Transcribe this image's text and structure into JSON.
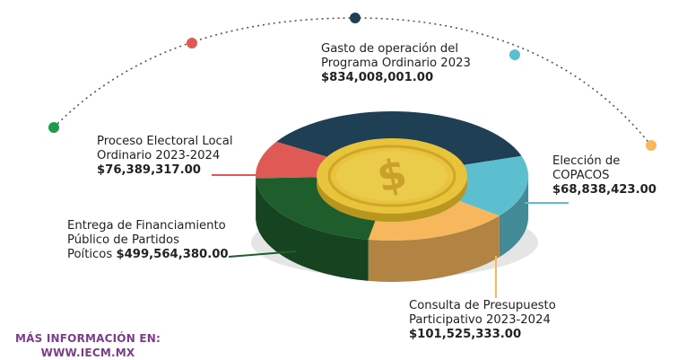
{
  "chart_data": {
    "type": "pie",
    "slices": [
      {
        "label": "Gasto de operación del\nPrograma Ordinario 2023",
        "value_text": "$834,008,001.00",
        "value": 834008001.0,
        "color": "#1f3f55"
      },
      {
        "label": "Elección de\nCOPACOS",
        "value_text": "$68,838,423.00",
        "value": 68838423.0,
        "color": "#5bbfd0"
      },
      {
        "label": "Consulta de Presupuesto\nParticipativo 2023-2024",
        "value_text": "$101,525,333.00",
        "value": 101525333.0,
        "color": "#f7b85d"
      },
      {
        "label": "Entrega de Financiamiento\nPúblico de Partidos\nPoíticos",
        "value_text": "$499,564,380.00",
        "value": 499564380.0,
        "color": "#1f5e2c"
      },
      {
        "label": "Proceso Electoral Local\nOrdinario 2023-2024",
        "value_text": "$76,389,317.00",
        "value": 76389317.0,
        "color": "#e05a55"
      }
    ]
  },
  "footer": {
    "line1": "MÁS INFORMACIÓN EN:",
    "line2": "WWW.IECM.MX"
  },
  "colors": {
    "arc_dots": [
      "#1f9a4a",
      "#e05a55",
      "#1f3f55",
      "#5bbfd0",
      "#f7b85d"
    ],
    "coin": "#e7c43b",
    "coin_dark": "#b8961f",
    "footer_text": "#7a3e8a"
  },
  "icons": {
    "coin": "dollar-coin-icon"
  }
}
